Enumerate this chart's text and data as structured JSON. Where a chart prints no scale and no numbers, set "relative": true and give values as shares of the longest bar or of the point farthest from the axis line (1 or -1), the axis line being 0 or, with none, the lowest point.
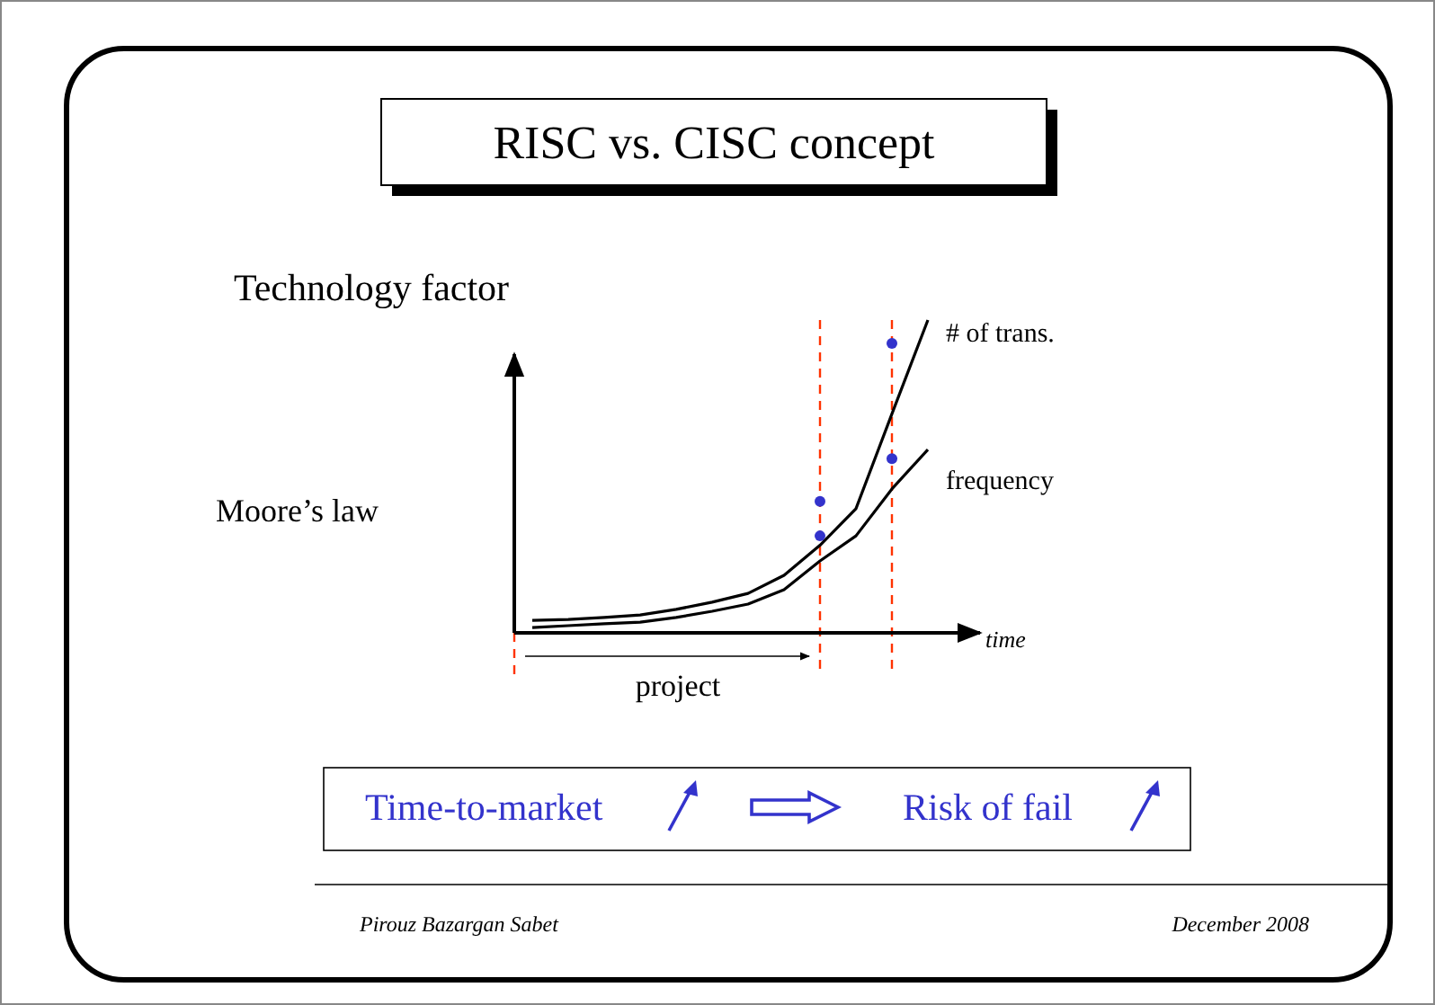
{
  "chart_data": {
    "type": "line",
    "title": "RISC vs. CISC concept",
    "subtitle": "Technology factor",
    "ylabel": "Moore’s law",
    "xlabel": "time",
    "relative": true,
    "legend": "top right",
    "marker": "none",
    "line_style": "solid",
    "categories": [
      null,
      null,
      null,
      null,
      null,
      null,
      null,
      null,
      null,
      null,
      null,
      null
    ],
    "series": [
      {
        "name": "# of trans.",
        "color": "#000000",
        "values": [
          0.04,
          0.043,
          0.049,
          0.057,
          0.075,
          0.098,
          0.126,
          0.184,
          0.28,
          0.397,
          0.7,
          1
        ]
      },
      {
        "name": "frequency",
        "color": "#000000",
        "values": [
          0.017,
          0.023,
          0.029,
          0.034,
          0.049,
          0.069,
          0.092,
          0.138,
          0.23,
          0.31,
          0.46,
          0.586
        ]
      }
    ],
    "annotations": [
      "project",
      "Time-to-market",
      "Risk of fail",
      "Pirouz Bazargan Sabet",
      "December 2008"
    ]
  }
}
